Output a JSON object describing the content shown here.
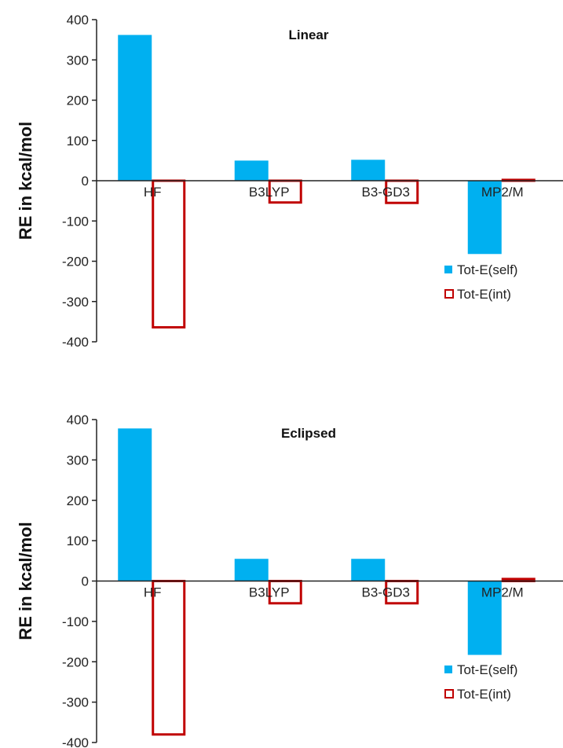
{
  "colors": {
    "self": "#00b0f0",
    "int_border": "#c00000",
    "axis": "#222222"
  },
  "chart_data": [
    {
      "type": "bar",
      "title": "Linear",
      "ylabel": "RE in kcal/mol",
      "xlabel": "",
      "ylim": [
        -400,
        400
      ],
      "yticks": [
        400,
        300,
        200,
        100,
        0,
        -100,
        -200,
        -300,
        -400
      ],
      "categories": [
        "HF",
        "B3LYP",
        "B3-GD3",
        "MP2/M"
      ],
      "series": [
        {
          "name": "Tot-E(self)",
          "values": [
            362,
            50,
            52,
            -182
          ]
        },
        {
          "name": "Tot-E(int)",
          "values": [
            -367,
            -57,
            -58,
            5
          ]
        }
      ],
      "legend": "bottom-right"
    },
    {
      "type": "bar",
      "title": "Eclipsed",
      "ylabel": "RE in kcal/mol",
      "xlabel": "",
      "ylim": [
        -400,
        400
      ],
      "yticks": [
        400,
        300,
        200,
        100,
        0,
        -100,
        -200,
        -300,
        -400
      ],
      "categories": [
        "HF",
        "B3LYP",
        "B3-GD3",
        "MP2/M"
      ],
      "series": [
        {
          "name": "Tot-E(self)",
          "values": [
            378,
            55,
            55,
            -183
          ]
        },
        {
          "name": "Tot-E(int)",
          "values": [
            -383,
            -58,
            -58,
            8
          ]
        }
      ],
      "legend": "bottom-right"
    }
  ]
}
